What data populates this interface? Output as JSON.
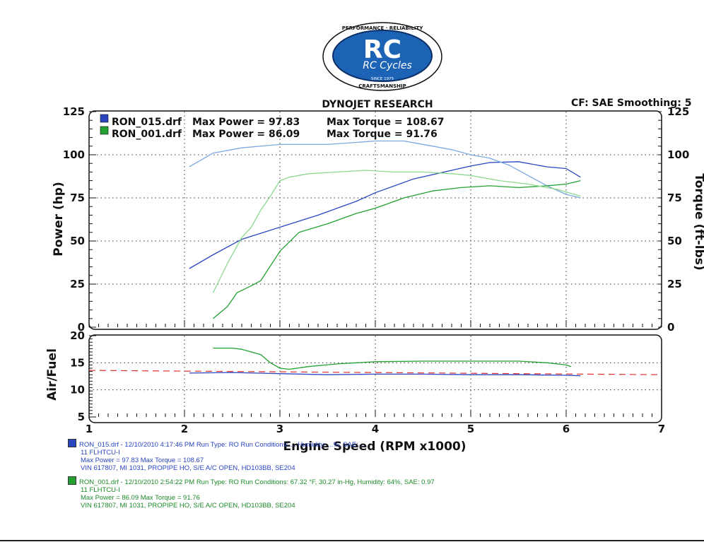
{
  "logo": {
    "brand": "RC",
    "script": "RC Cycles",
    "arc_top": "PERFORMANCE · RELIABILITY",
    "arc_bottom": "CRAFTSMANSHIP",
    "since": "SINCE 1975"
  },
  "header": {
    "title": "DYNOJET RESEARCH",
    "settings": "CF: SAE  Smoothing: 5"
  },
  "legend": [
    {
      "file": "RON_015.drf",
      "power_label": "Max Power = 97.83",
      "torque_label": "Max Torque = 108.67",
      "color": "#2a45c0"
    },
    {
      "file": "RON_001.drf",
      "power_label": "Max Power = 86.09",
      "torque_label": "Max Torque = 91.76",
      "color": "#22a030"
    }
  ],
  "colors": {
    "run1_power": "#2a45c0",
    "run1_torque": "#7aa8e0",
    "run2_power": "#22a030",
    "run2_torque": "#8cd890",
    "target_af": "#e03030"
  },
  "run_info": [
    {
      "line1": "RON_015.drf - 12/10/2010 4:17:46 PM  Run Type: RO  Run Conditions: ...  Humidity: ...%, SAE: ...",
      "line2": "11 FLHTCU-I",
      "line3": "Max Power = 97.83  Max Torque = 108.67",
      "line4": "VIN 617807, MI 1031, PROPIPE HO, S/E A/C OPEN, HD103BB, SE204"
    },
    {
      "line1": "RON_001.drf - 12/10/2010 2:54:22 PM  Run Type: RO  Run Conditions: 67.32 °F, 30.27 in-Hg,  Humidity:  64%, SAE: 0.97",
      "line2": "11 FLHTCU-I",
      "line3": "Max Power = 86.09  Max Torque = 91.76",
      "line4": "VIN 617807, MI 1031, PROPIPE HO, S/E A/C OPEN, HD103BB, SE204"
    }
  ],
  "chart_data": [
    {
      "type": "line",
      "title": "DYNOJET RESEARCH",
      "xlabel": "Engine Speed (RPM x1000)",
      "ylabel": "Power (hp)",
      "y2label": "Torque (ft-lbs)",
      "xlim": [
        1,
        7
      ],
      "ylim": [
        0,
        125
      ],
      "y2lim": [
        0,
        125
      ],
      "x_ticks": [
        "1",
        "2",
        "3",
        "4",
        "5",
        "6",
        "7"
      ],
      "y_ticks": [
        "0",
        "25",
        "50",
        "75",
        "100",
        "125"
      ],
      "y2_ticks": [
        "0",
        "25",
        "50",
        "75",
        "100",
        "125"
      ],
      "grid": true,
      "legend_position": "top-left",
      "series": [
        {
          "name": "RON_015.drf",
          "measure": "Power",
          "axis": "left",
          "x": [
            2.05,
            2.3,
            2.6,
            3.0,
            3.4,
            3.8,
            4.0,
            4.4,
            4.8,
            5.0,
            5.2,
            5.5,
            5.8,
            6.0,
            6.15
          ],
          "y": [
            34,
            42,
            51,
            58,
            65,
            73,
            78,
            86,
            91,
            93.5,
            95.5,
            96,
            93,
            92,
            87
          ]
        },
        {
          "name": "RON_015.drf",
          "measure": "Torque",
          "axis": "right",
          "x": [
            2.05,
            2.3,
            2.6,
            3.0,
            3.5,
            4.0,
            4.3,
            4.6,
            4.8,
            5.0,
            5.2,
            5.4,
            5.6,
            5.8,
            6.0,
            6.15
          ],
          "y": [
            93,
            101,
            104,
            106,
            106,
            108,
            108,
            105,
            103,
            100,
            98,
            94,
            88,
            82,
            77,
            75
          ]
        },
        {
          "name": "RON_001.drf",
          "measure": "Power",
          "axis": "left",
          "x": [
            2.3,
            2.45,
            2.55,
            2.7,
            2.8,
            3.0,
            3.2,
            3.5,
            3.8,
            4.0,
            4.3,
            4.6,
            4.9,
            5.2,
            5.5,
            5.8,
            6.0,
            6.15
          ],
          "y": [
            5,
            12,
            20,
            24,
            27,
            44,
            55,
            60,
            66,
            69,
            75,
            79,
            81,
            82,
            81,
            82,
            83,
            85
          ]
        },
        {
          "name": "RON_001.drf",
          "measure": "Torque",
          "axis": "right",
          "x": [
            2.3,
            2.45,
            2.6,
            2.7,
            2.8,
            2.9,
            3.0,
            3.1,
            3.3,
            3.6,
            3.9,
            4.2,
            4.5,
            4.8,
            5.0,
            5.3,
            5.6,
            5.9,
            6.15
          ],
          "y": [
            20,
            37,
            52,
            58,
            68,
            76,
            85,
            87,
            89,
            90,
            91,
            90,
            90,
            89,
            88,
            85,
            83,
            80,
            76
          ]
        }
      ]
    },
    {
      "type": "line",
      "ylabel": "Air/Fuel",
      "xlabel": "Engine Speed (RPM x1000)",
      "xlim": [
        1,
        7
      ],
      "ylim": [
        5,
        20
      ],
      "x_ticks": [
        "1",
        "2",
        "3",
        "4",
        "5",
        "6",
        "7"
      ],
      "y_ticks": [
        "5",
        "10",
        "15",
        "20"
      ],
      "grid": true,
      "series": [
        {
          "name": "RON_015.drf",
          "x": [
            2.05,
            2.5,
            3.0,
            3.5,
            4.0,
            4.5,
            5.0,
            5.5,
            6.0,
            6.15
          ],
          "y": [
            13.1,
            13.2,
            13.0,
            12.8,
            12.9,
            12.9,
            12.8,
            12.8,
            12.7,
            12.6
          ]
        },
        {
          "name": "RON_001.drf",
          "x": [
            2.3,
            2.5,
            2.6,
            2.8,
            2.9,
            3.0,
            3.1,
            3.3,
            3.6,
            4.0,
            4.5,
            5.0,
            5.5,
            5.8,
            6.0,
            6.05
          ],
          "y": [
            17.7,
            17.7,
            17.5,
            16.5,
            15.0,
            14.0,
            13.8,
            14.3,
            14.8,
            15.2,
            15.3,
            15.3,
            15.3,
            15.0,
            14.6,
            14.3
          ]
        },
        {
          "name": "",
          "style": "dashed",
          "x": [
            1,
            7
          ],
          "y": [
            13.6,
            12.8
          ]
        }
      ]
    }
  ]
}
